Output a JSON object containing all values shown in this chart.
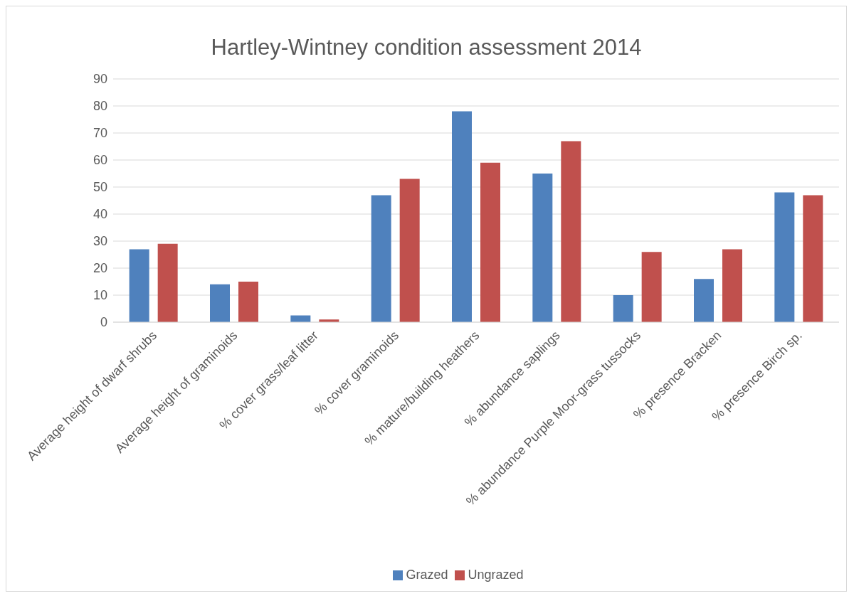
{
  "chart_data": {
    "type": "bar",
    "title": "Hartley-Wintney condition assessment 2014",
    "categories": [
      "Average height of dwarf shrubs",
      "Average height of graminoids",
      "% cover grass/leaf litter",
      "% cover graminoids",
      "% mature/building heathers",
      "% abundance saplings",
      "% abundance Purple Moor-grass tussocks",
      "% presence Bracken",
      "% presence Birch sp."
    ],
    "series": [
      {
        "name": "Grazed",
        "color": "#4f81bd",
        "values": [
          27,
          14,
          2.5,
          47,
          78,
          55,
          10,
          16,
          48
        ]
      },
      {
        "name": "Ungrazed",
        "color": "#c0504d",
        "values": [
          29,
          15,
          1,
          53,
          59,
          67,
          26,
          27,
          47
        ]
      }
    ],
    "ylim": [
      0,
      90
    ],
    "yticks": [
      0,
      10,
      20,
      30,
      40,
      50,
      60,
      70,
      80,
      90
    ],
    "grid": "y",
    "legend": "bottom"
  }
}
